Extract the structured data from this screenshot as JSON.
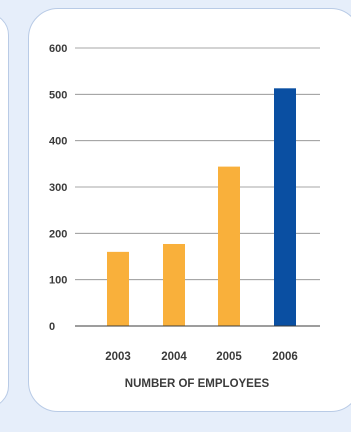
{
  "chart_data": {
    "type": "bar",
    "categories": [
      "2003",
      "2004",
      "2005",
      "2006"
    ],
    "values": [
      160,
      177,
      344,
      513
    ],
    "colors": [
      "#f9b03b",
      "#f9b03b",
      "#f9b03b",
      "#0a4fa2"
    ],
    "xlabel": "NUMBER OF EMPLOYEES",
    "ylim": [
      0,
      600
    ],
    "yticks": [
      "0",
      "100",
      "200",
      "300",
      "400",
      "500",
      "600"
    ],
    "grid": true
  }
}
